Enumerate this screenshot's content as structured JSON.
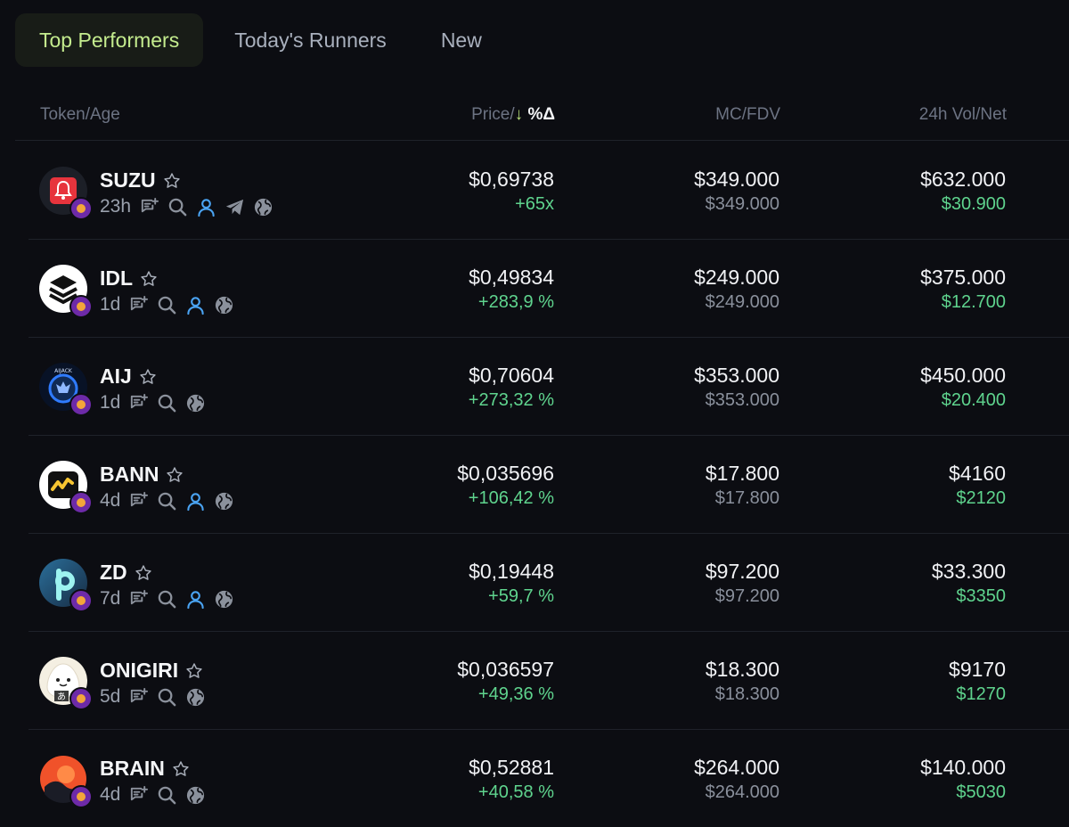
{
  "tabs": [
    {
      "label": "Top Performers",
      "active": true
    },
    {
      "label": "Today's Runners",
      "active": false
    },
    {
      "label": "New",
      "active": false
    }
  ],
  "columns": {
    "token_age": "Token/Age",
    "price_prefix": "Price/",
    "sort_arrow": "↓",
    "pct_delta": "%Δ",
    "mc_fdv": "MC/FDV",
    "vol_net": "24h Vol/Net"
  },
  "colors": {
    "accent": "#c4ec8e",
    "positive": "#5fd48e",
    "social": "#4aa3f2"
  },
  "rows": [
    {
      "symbol": "SUZU",
      "age": "23h",
      "price": "$0,69738",
      "change": "+65x",
      "mc": "$349.000",
      "fdv": "$349.000",
      "vol": "$632.000",
      "net": "$30.900",
      "icons": [
        "post-icon",
        "search-icon",
        "user-icon",
        "telegram-icon",
        "globe-icon"
      ]
    },
    {
      "symbol": "IDL",
      "age": "1d",
      "price": "$0,49834",
      "change": "+283,9 %",
      "mc": "$249.000",
      "fdv": "$249.000",
      "vol": "$375.000",
      "net": "$12.700",
      "icons": [
        "post-icon",
        "search-icon",
        "user-icon",
        "globe-icon"
      ]
    },
    {
      "symbol": "AIJ",
      "age": "1d",
      "price": "$0,70604",
      "change": "+273,32 %",
      "mc": "$353.000",
      "fdv": "$353.000",
      "vol": "$450.000",
      "net": "$20.400",
      "icons": [
        "post-icon",
        "search-icon",
        "globe-icon"
      ]
    },
    {
      "symbol": "BANN",
      "age": "4d",
      "price": "$0,035696",
      "change": "+106,42 %",
      "mc": "$17.800",
      "fdv": "$17.800",
      "vol": "$4160",
      "net": "$2120",
      "icons": [
        "post-icon",
        "search-icon",
        "user-icon",
        "globe-icon"
      ]
    },
    {
      "symbol": "ZD",
      "age": "7d",
      "price": "$0,19448",
      "change": "+59,7 %",
      "mc": "$97.200",
      "fdv": "$97.200",
      "vol": "$33.300",
      "net": "$3350",
      "icons": [
        "post-icon",
        "search-icon",
        "user-icon",
        "globe-icon"
      ]
    },
    {
      "symbol": "ONIGIRI",
      "age": "5d",
      "price": "$0,036597",
      "change": "+49,36 %",
      "mc": "$18.300",
      "fdv": "$18.300",
      "vol": "$9170",
      "net": "$1270",
      "icons": [
        "post-icon",
        "search-icon",
        "globe-icon"
      ]
    },
    {
      "symbol": "BRAIN",
      "age": "4d",
      "price": "$0,52881",
      "change": "+40,58 %",
      "mc": "$264.000",
      "fdv": "$264.000",
      "vol": "$140.000",
      "net": "$5030",
      "icons": [
        "post-icon",
        "search-icon",
        "globe-icon"
      ]
    }
  ]
}
